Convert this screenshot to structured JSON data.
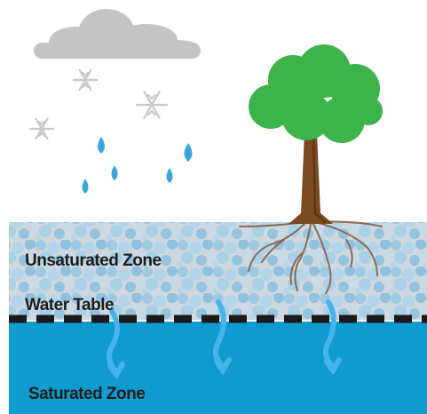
{
  "labels": {
    "unsaturated": "Unsaturated Zone",
    "water_table": "Water Table",
    "saturated": "Saturated Zone"
  }
}
